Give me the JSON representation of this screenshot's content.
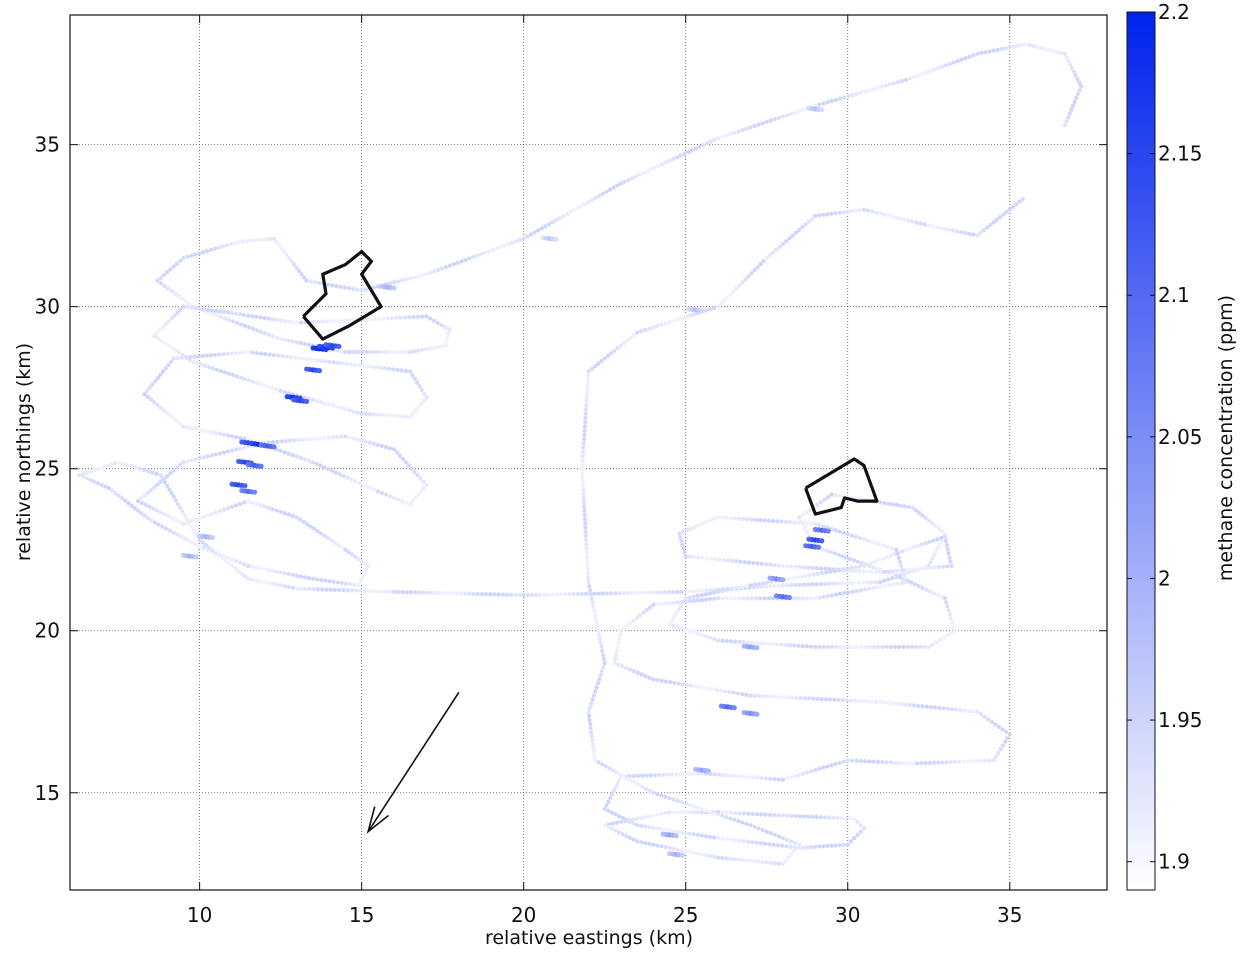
{
  "chart_data": {
    "type": "scatter",
    "xlabel": "relative eastings (km)",
    "ylabel": "relative northings (km)",
    "xlim": [
      6,
      38
    ],
    "ylim": [
      12,
      39
    ],
    "xticks": [
      "10",
      "15",
      "20",
      "25",
      "30",
      "35"
    ],
    "yticks": [
      "15",
      "20",
      "25",
      "30",
      "35"
    ],
    "grid": true,
    "colorbar": {
      "label": "methane concentration (ppm)",
      "range": [
        1.89,
        2.2
      ],
      "ticks": [
        "1.9",
        "1.95",
        "2",
        "2.05",
        "2.1",
        "2.15",
        "2.2"
      ],
      "color_low": "#ffffff",
      "color_high": "#0022ee"
    },
    "flight_track": [
      [
        36.7,
        35.6
      ],
      [
        37.2,
        36.8
      ],
      [
        36.7,
        37.8
      ],
      [
        35.5,
        38.1
      ],
      [
        34.0,
        37.8
      ],
      [
        31.8,
        37.0
      ],
      [
        29.0,
        36.2
      ],
      [
        26.0,
        35.2
      ],
      [
        23.0,
        33.8
      ],
      [
        20.0,
        32.1
      ],
      [
        17.0,
        31.0
      ],
      [
        15.0,
        30.5
      ],
      [
        13.3,
        30.8
      ],
      [
        12.3,
        32.1
      ],
      [
        11.2,
        32.0
      ],
      [
        9.5,
        31.5
      ],
      [
        8.7,
        30.8
      ],
      [
        9.8,
        30.0
      ],
      [
        12.5,
        29.0
      ],
      [
        14.5,
        28.6
      ],
      [
        16.5,
        28.6
      ],
      [
        17.6,
        28.8
      ],
      [
        17.7,
        29.3
      ],
      [
        17.0,
        29.7
      ],
      [
        15.0,
        29.6
      ],
      [
        13.0,
        29.5
      ],
      [
        11.0,
        29.8
      ],
      [
        9.5,
        30.0
      ],
      [
        8.6,
        29.1
      ],
      [
        9.8,
        28.3
      ],
      [
        12.5,
        27.4
      ],
      [
        15.0,
        26.7
      ],
      [
        16.5,
        26.6
      ],
      [
        17.0,
        27.2
      ],
      [
        16.5,
        28.0
      ],
      [
        14.0,
        28.3
      ],
      [
        11.5,
        28.6
      ],
      [
        9.2,
        28.4
      ],
      [
        8.3,
        27.3
      ],
      [
        9.5,
        26.3
      ],
      [
        11.5,
        25.9
      ],
      [
        13.5,
        25.2
      ],
      [
        15.5,
        24.3
      ],
      [
        16.5,
        23.9
      ],
      [
        17.0,
        24.5
      ],
      [
        16.0,
        25.6
      ],
      [
        14.5,
        26.0
      ],
      [
        12.0,
        25.8
      ],
      [
        9.5,
        25.2
      ],
      [
        8.1,
        24.0
      ],
      [
        9.5,
        23.3
      ],
      [
        11.5,
        24.0
      ],
      [
        13.0,
        23.5
      ],
      [
        14.5,
        22.5
      ],
      [
        15.2,
        22.0
      ],
      [
        14.9,
        21.4
      ],
      [
        13.5,
        21.6
      ],
      [
        11.5,
        22.0
      ],
      [
        10.0,
        22.6
      ],
      [
        8.5,
        23.4
      ],
      [
        7.2,
        24.4
      ],
      [
        6.3,
        24.8
      ],
      [
        7.5,
        25.2
      ],
      [
        8.8,
        24.8
      ],
      [
        10.0,
        22.8
      ],
      [
        11.5,
        21.6
      ],
      [
        13.0,
        21.3
      ],
      [
        16.0,
        21.2
      ],
      [
        20.0,
        21.1
      ],
      [
        25.0,
        21.2
      ],
      [
        28.0,
        21.4
      ],
      [
        31.0,
        21.5
      ],
      [
        32.5,
        22.0
      ],
      [
        33.0,
        23.0
      ],
      [
        32.0,
        23.8
      ],
      [
        29.5,
        24.2
      ],
      [
        28.5,
        23.5
      ],
      [
        29.0,
        22.6
      ],
      [
        31.5,
        21.7
      ],
      [
        33.0,
        21.0
      ],
      [
        33.3,
        20.0
      ],
      [
        32.5,
        19.5
      ],
      [
        29.0,
        19.5
      ],
      [
        26.0,
        19.7
      ],
      [
        24.5,
        20.2
      ],
      [
        25.0,
        21.0
      ],
      [
        27.0,
        21.4
      ],
      [
        30.5,
        22.0
      ],
      [
        31.8,
        22.5
      ],
      [
        33.0,
        22.9
      ],
      [
        33.2,
        22.0
      ],
      [
        31.0,
        21.8
      ],
      [
        28.0,
        22.0
      ],
      [
        25.0,
        22.3
      ],
      [
        24.8,
        23.0
      ],
      [
        26.0,
        23.5
      ],
      [
        29.0,
        23.3
      ],
      [
        31.5,
        22.5
      ],
      [
        31.8,
        21.5
      ],
      [
        29.0,
        21.0
      ],
      [
        26.0,
        21.0
      ],
      [
        24.0,
        20.8
      ],
      [
        23.0,
        20.0
      ],
      [
        22.8,
        19.0
      ],
      [
        24.0,
        18.5
      ],
      [
        27.0,
        18.0
      ],
      [
        31.0,
        17.8
      ],
      [
        34.0,
        17.5
      ],
      [
        35.0,
        16.8
      ],
      [
        34.5,
        16.0
      ],
      [
        32.0,
        15.9
      ],
      [
        30.0,
        16.0
      ],
      [
        28.0,
        15.4
      ],
      [
        25.5,
        15.6
      ],
      [
        23.0,
        15.5
      ],
      [
        22.5,
        14.5
      ],
      [
        23.5,
        14.0
      ],
      [
        26.0,
        13.6
      ],
      [
        28.5,
        13.3
      ],
      [
        30.0,
        13.4
      ],
      [
        30.5,
        13.9
      ],
      [
        30.2,
        14.2
      ],
      [
        28.0,
        14.3
      ],
      [
        26.0,
        14.4
      ],
      [
        24.5,
        14.4
      ],
      [
        22.5,
        14.0
      ],
      [
        23.5,
        13.5
      ],
      [
        26.0,
        13.0
      ],
      [
        28.0,
        12.8
      ],
      [
        28.5,
        13.4
      ],
      [
        27.0,
        14.0
      ],
      [
        24.0,
        15.0
      ],
      [
        22.2,
        16.0
      ],
      [
        22.0,
        17.5
      ],
      [
        22.5,
        19.0
      ],
      [
        22.0,
        21.5
      ],
      [
        21.8,
        25.0
      ],
      [
        22.0,
        28.0
      ],
      [
        23.5,
        29.2
      ],
      [
        26.0,
        30.0
      ],
      [
        27.5,
        31.5
      ],
      [
        29.0,
        32.8
      ],
      [
        30.5,
        33.0
      ],
      [
        32.5,
        32.5
      ],
      [
        34.0,
        32.2
      ],
      [
        35.0,
        33.0
      ],
      [
        35.5,
        33.4
      ]
    ],
    "enhancements": [
      {
        "x": 13.7,
        "y": 28.7,
        "v": 2.2
      },
      {
        "x": 13.9,
        "y": 28.75,
        "v": 2.18
      },
      {
        "x": 14.1,
        "y": 28.8,
        "v": 2.15
      },
      {
        "x": 13.5,
        "y": 28.05,
        "v": 2.15
      },
      {
        "x": 12.9,
        "y": 27.2,
        "v": 2.18
      },
      {
        "x": 13.1,
        "y": 27.1,
        "v": 2.15
      },
      {
        "x": 11.5,
        "y": 25.8,
        "v": 2.15
      },
      {
        "x": 11.8,
        "y": 25.75,
        "v": 2.18
      },
      {
        "x": 12.1,
        "y": 25.7,
        "v": 2.12
      },
      {
        "x": 11.4,
        "y": 25.2,
        "v": 2.15
      },
      {
        "x": 11.7,
        "y": 25.1,
        "v": 2.12
      },
      {
        "x": 11.2,
        "y": 24.5,
        "v": 2.15
      },
      {
        "x": 11.5,
        "y": 24.3,
        "v": 2.1
      },
      {
        "x": 9.7,
        "y": 22.3,
        "v": 2.0
      },
      {
        "x": 10.2,
        "y": 22.9,
        "v": 2.0
      },
      {
        "x": 29.0,
        "y": 22.8,
        "v": 2.15
      },
      {
        "x": 28.9,
        "y": 22.6,
        "v": 2.12
      },
      {
        "x": 29.2,
        "y": 23.1,
        "v": 2.1
      },
      {
        "x": 28.0,
        "y": 21.05,
        "v": 2.1
      },
      {
        "x": 27.8,
        "y": 21.6,
        "v": 2.05
      },
      {
        "x": 26.3,
        "y": 17.65,
        "v": 2.1
      },
      {
        "x": 27.0,
        "y": 17.45,
        "v": 2.05
      },
      {
        "x": 27.0,
        "y": 19.5,
        "v": 2.03
      },
      {
        "x": 25.5,
        "y": 15.7,
        "v": 2.02
      },
      {
        "x": 24.5,
        "y": 13.7,
        "v": 2.02
      },
      {
        "x": 24.7,
        "y": 13.1,
        "v": 2.0
      },
      {
        "x": 29.0,
        "y": 36.1,
        "v": 1.98
      },
      {
        "x": 25.3,
        "y": 29.9,
        "v": 1.98
      },
      {
        "x": 15.8,
        "y": 30.6,
        "v": 2.0
      },
      {
        "x": 20.8,
        "y": 32.1,
        "v": 1.97
      }
    ],
    "annotations": {
      "arrow": {
        "from": [
          18.0,
          18.1
        ],
        "to": [
          15.2,
          13.8
        ]
      },
      "outlines": [
        [
          [
            13.2,
            29.7
          ],
          [
            13.9,
            30.4
          ],
          [
            13.8,
            31.0
          ],
          [
            14.5,
            31.3
          ],
          [
            15.0,
            31.7
          ],
          [
            15.3,
            31.4
          ],
          [
            15.0,
            31.0
          ],
          [
            15.6,
            30.0
          ],
          [
            14.6,
            29.4
          ],
          [
            13.8,
            29.0
          ],
          [
            13.2,
            29.7
          ]
        ],
        [
          [
            28.7,
            24.4
          ],
          [
            30.2,
            25.3
          ],
          [
            30.5,
            25.1
          ],
          [
            30.9,
            24.0
          ],
          [
            30.3,
            24.0
          ],
          [
            29.9,
            24.1
          ],
          [
            29.8,
            23.8
          ],
          [
            29.0,
            23.6
          ],
          [
            28.7,
            24.4
          ]
        ]
      ]
    }
  }
}
